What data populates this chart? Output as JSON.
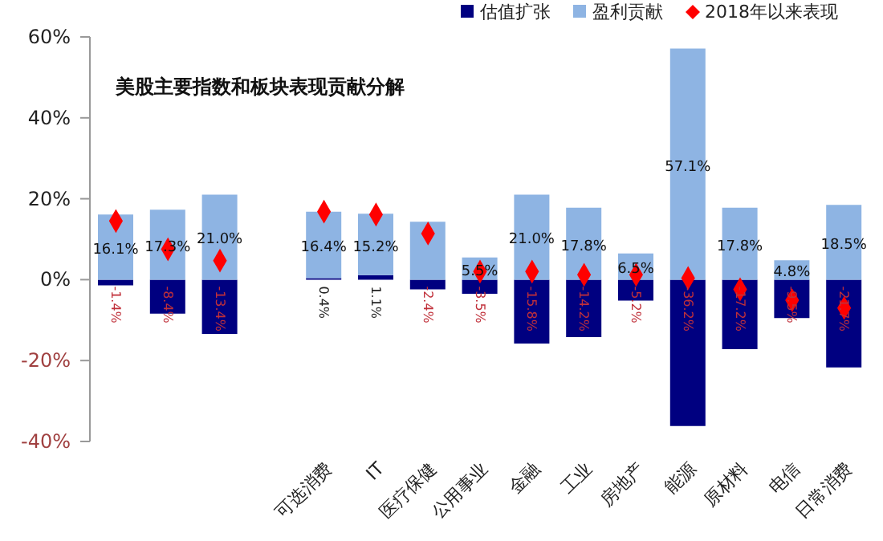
{
  "chart_data": {
    "type": "bar",
    "title": "美股主要指数和板块表现贡献分解",
    "categories": [
      null,
      null,
      null,
      null,
      "可选消费",
      "IT",
      "医疗保健",
      "公用事业",
      "金融",
      "工业",
      "房地产",
      "能源",
      "原材料",
      "电信",
      "日常消费"
    ],
    "stacked": true,
    "series": [
      {
        "name": "估值扩张",
        "color": "#000080",
        "values": [
          -1.4,
          -8.4,
          -13.4,
          null,
          0.4,
          1.1,
          -2.4,
          -3.5,
          -15.8,
          -14.2,
          -5.2,
          -36.2,
          -17.2,
          -9.5,
          -21.7
        ],
        "value_labels": [
          "-1.4%",
          "-8.4%",
          "-13.4%",
          null,
          "0.4%",
          "1.1%",
          "-2.4%",
          "-3.5%",
          "-15.8%",
          "-14.2%",
          "-5.2%",
          "-36.2%",
          "-17.2%",
          "-9.5%",
          "-21.7%"
        ]
      },
      {
        "name": "盈利贡献",
        "color": "#8eb4e3",
        "values": [
          16.1,
          17.3,
          21.0,
          null,
          16.4,
          15.2,
          14.3,
          5.5,
          21.0,
          17.8,
          6.5,
          57.1,
          17.8,
          4.8,
          18.5
        ],
        "value_labels": [
          "16.1%",
          "17.3%",
          "21.0%",
          null,
          "16.4%",
          "15.2%",
          null,
          "5.5%",
          "21.0%",
          "17.8%",
          "6.5%",
          "57.1%",
          "17.8%",
          "4.8%",
          "18.5%"
        ]
      },
      {
        "name": "2018年以来表现",
        "type": "scatter",
        "color": "#ff0000",
        "marker": "diamond",
        "values": [
          14.5,
          7.5,
          4.7,
          null,
          16.8,
          16.1,
          11.4,
          2.0,
          2.0,
          1.2,
          1.2,
          0.4,
          -2.4,
          -5.1,
          -7.0
        ]
      }
    ],
    "ylim": [
      -40,
      60
    ],
    "yticks": [
      {
        "value": -40,
        "label": "-40%"
      },
      {
        "value": -20,
        "label": "-20%"
      },
      {
        "value": 0,
        "label": "0%"
      },
      {
        "value": 20,
        "label": "20%"
      },
      {
        "value": 40,
        "label": "40%"
      },
      {
        "value": 60,
        "label": "60%"
      }
    ],
    "grid": false,
    "legend": "top right"
  }
}
